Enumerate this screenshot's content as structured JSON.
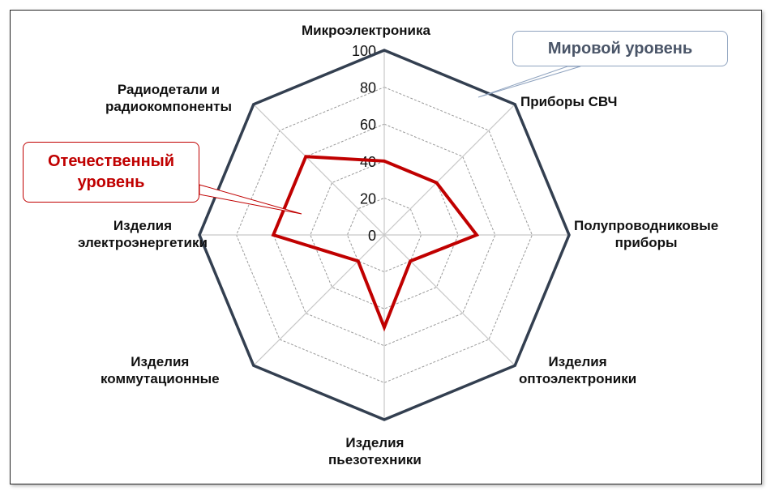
{
  "chart_data": {
    "type": "radar",
    "categories": [
      "Микроэлектроника",
      "Приборы СВЧ",
      "Полупроводниковые приборы",
      "Изделия оптоэлектроники",
      "Изделия пьезотехники",
      "Изделия коммутационные",
      "Изделия электроэнергетики",
      "Радиодетали и радиокомпоненты"
    ],
    "series": [
      {
        "name": "Мировой уровень",
        "values": [
          100,
          100,
          100,
          100,
          100,
          100,
          100,
          100
        ],
        "color": "#333f50"
      },
      {
        "name": "Отечественный уровень",
        "values": [
          40,
          40,
          50,
          20,
          50,
          20,
          60,
          60
        ],
        "color": "#c00000"
      }
    ],
    "rlim": [
      0,
      100
    ],
    "ticks": [
      "0",
      "20",
      "40",
      "60",
      "80",
      "100"
    ],
    "grid": true
  },
  "labels": {
    "c0": [
      "Микроэлектроника"
    ],
    "c1": [
      "Приборы СВЧ"
    ],
    "c2": [
      "Полупроводниковые",
      "приборы"
    ],
    "c3": [
      "Изделия",
      "оптоэлектроники"
    ],
    "c4": [
      "Изделия",
      "пьезотехники"
    ],
    "c5": [
      "Изделия",
      "коммутационные"
    ],
    "c6": [
      "Изделия",
      "электроэнергетики"
    ],
    "c7": [
      "Радиодетали и",
      "радиокомпоненты"
    ]
  },
  "callouts": {
    "world": "Мировой уровень",
    "domestic_1": "Отечественный",
    "domestic_2": "уровень"
  }
}
